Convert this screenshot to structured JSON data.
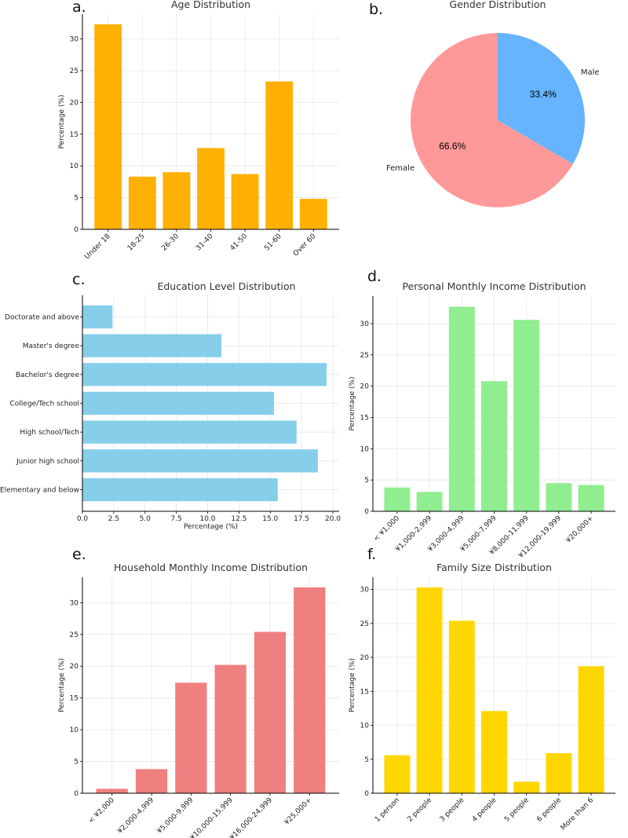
{
  "chart_data": [
    {
      "id": "age",
      "panel_label": "a.",
      "type": "bar",
      "title": "Age Distribution",
      "xlabel": "",
      "ylabel": "Percentage (%)",
      "categories": [
        "Under 18",
        "18-25",
        "26-30",
        "31-40",
        "41-50",
        "51-60",
        "Over 60"
      ],
      "values": [
        32.3,
        8.3,
        9.0,
        12.8,
        8.7,
        23.3,
        4.8
      ],
      "ylim": [
        0,
        33.9
      ],
      "yticks": [
        0,
        5,
        10,
        15,
        20,
        25,
        30
      ],
      "color": "#FFB000",
      "grid": true
    },
    {
      "id": "gender",
      "panel_label": "b.",
      "type": "pie",
      "title": "Gender Distribution",
      "labels": [
        "Male",
        "Female"
      ],
      "values": [
        33.4,
        66.6
      ],
      "value_labels": [
        "33.4%",
        "66.6%"
      ],
      "colors": [
        "#66B3FF",
        "#FF9999"
      ]
    },
    {
      "id": "education",
      "panel_label": "c.",
      "type": "bar",
      "orientation": "horizontal",
      "title": "Education Level Distribution",
      "xlabel": "Percentage (%)",
      "ylabel": "",
      "categories": [
        "Doctorate and above",
        "Master's degree",
        "Bachelor's degree",
        "College/Tech school",
        "High school/Tech",
        "Junior high school",
        "Elementary and below"
      ],
      "values": [
        2.4,
        11.1,
        19.5,
        15.3,
        17.1,
        18.8,
        15.6
      ],
      "xlim": [
        0,
        20.5
      ],
      "xticks": [
        "0.0",
        "2.5",
        "5.0",
        "7.5",
        "10.0",
        "12.5",
        "15.0",
        "17.5",
        "20.0"
      ],
      "color": "#87CEEB",
      "grid": true
    },
    {
      "id": "personal_income",
      "panel_label": "d.",
      "type": "bar",
      "title": "Personal Monthly Income Distribution",
      "xlabel": "",
      "ylabel": "Percentage (%)",
      "categories": [
        "< ¥1,000",
        "¥1,000-2,999",
        "¥3,000-4,999",
        "¥5,000-7,999",
        "¥8,000-11,999",
        "¥12,000-19,999",
        "¥20,000+"
      ],
      "values": [
        3.8,
        3.1,
        32.7,
        20.8,
        30.6,
        4.5,
        4.2
      ],
      "ylim": [
        0,
        34.4
      ],
      "yticks": [
        0,
        5,
        10,
        15,
        20,
        25,
        30
      ],
      "color": "#90EE90",
      "grid": true
    },
    {
      "id": "household_income",
      "panel_label": "e.",
      "type": "bar",
      "title": "Household Monthly Income Distribution",
      "xlabel": "",
      "ylabel": "Percentage (%)",
      "categories": [
        "< ¥2,000",
        "¥2,000-4,999",
        "¥5,000-9,999",
        "¥10,000-15,999",
        "¥16,000-24,999",
        "¥25,000+"
      ],
      "values": [
        0.7,
        3.8,
        17.4,
        20.2,
        25.4,
        32.4
      ],
      "ylim": [
        0,
        34.0
      ],
      "yticks": [
        0,
        5,
        10,
        15,
        20,
        25,
        30
      ],
      "color": "#F08080",
      "grid": true
    },
    {
      "id": "family_size",
      "panel_label": "f.",
      "type": "bar",
      "title": "Family Size Distribution",
      "xlabel": "",
      "ylabel": "Percentage (%)",
      "categories": [
        "1 person",
        "2 people",
        "3 people",
        "4 people",
        "5 people",
        "6 people",
        "More than 6"
      ],
      "values": [
        5.6,
        30.3,
        25.4,
        12.1,
        1.7,
        5.9,
        18.7
      ],
      "ylim": [
        0,
        31.8
      ],
      "yticks": [
        0,
        5,
        10,
        15,
        20,
        25,
        30
      ],
      "color": "#FFD700",
      "grid": true
    }
  ]
}
